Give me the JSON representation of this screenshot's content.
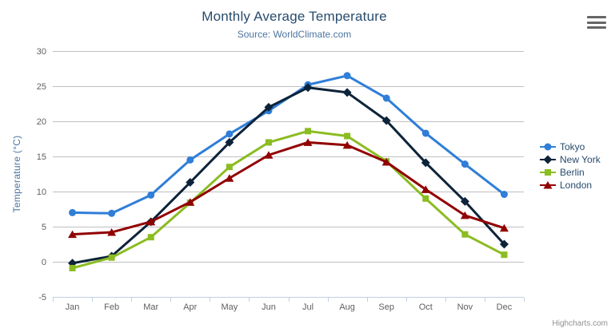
{
  "chart_data": {
    "type": "line",
    "title": "Monthly Average Temperature",
    "subtitle": "Source: WorldClimate.com",
    "xlabel": "",
    "ylabel": "Temperature (°C)",
    "ylim": [
      -5,
      30
    ],
    "yticks": [
      30,
      25,
      20,
      15,
      10,
      5,
      0,
      -5
    ],
    "grid": true,
    "legend_position": "right",
    "categories": [
      "Jan",
      "Feb",
      "Mar",
      "Apr",
      "May",
      "Jun",
      "Jul",
      "Aug",
      "Sep",
      "Oct",
      "Nov",
      "Dec"
    ],
    "series": [
      {
        "name": "Tokyo",
        "color": "#2f7ed8",
        "marker": "circle",
        "values": [
          7.0,
          6.9,
          9.5,
          14.5,
          18.2,
          21.5,
          25.2,
          26.5,
          23.3,
          18.3,
          13.9,
          9.6
        ]
      },
      {
        "name": "New York",
        "color": "#0d233a",
        "marker": "diamond",
        "values": [
          -0.2,
          0.8,
          5.7,
          11.3,
          17.0,
          22.0,
          24.8,
          24.1,
          20.1,
          14.1,
          8.6,
          2.5
        ]
      },
      {
        "name": "Berlin",
        "color": "#8bbc21",
        "marker": "square",
        "values": [
          -0.9,
          0.6,
          3.5,
          8.4,
          13.5,
          17.0,
          18.6,
          17.9,
          14.3,
          9.0,
          3.9,
          1.0
        ]
      },
      {
        "name": "London",
        "color": "#910000",
        "marker": "triangle",
        "values": [
          3.9,
          4.2,
          5.7,
          8.5,
          11.9,
          15.2,
          17.0,
          16.6,
          14.2,
          10.3,
          6.6,
          4.8
        ]
      }
    ]
  },
  "credits": {
    "label": "Highcharts.com"
  },
  "icons": {
    "menu": "hamburger-menu-icon"
  },
  "colors": {
    "title": "#274b6d",
    "subtitle": "#4d759e",
    "axis_label": "#606060",
    "axis_title": "#4d759e",
    "grid": "#c0c0c0",
    "axis_line": "#c0d0e0",
    "legend_text": "#274b6d",
    "credits": "#909090",
    "background": "#ffffff"
  }
}
